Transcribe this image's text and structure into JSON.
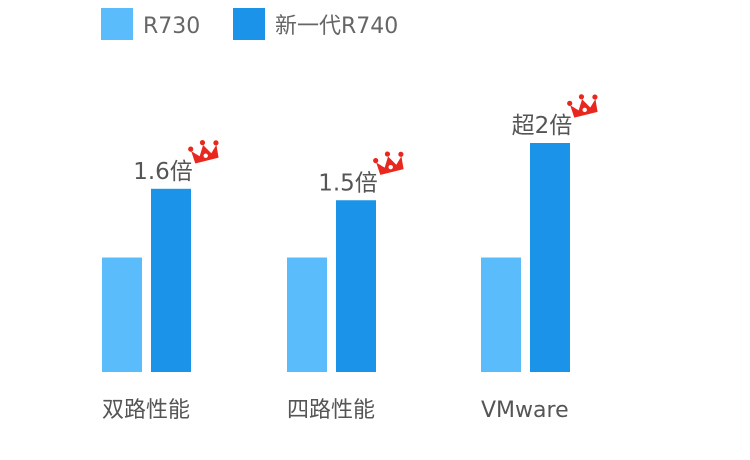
{
  "chart_data": {
    "type": "bar",
    "categories": [
      "双路性能",
      "四路性能",
      "VMware"
    ],
    "series": [
      {
        "name": "R730",
        "values": [
          1,
          1,
          1
        ],
        "color": "#5bbcfc"
      },
      {
        "name": "新一代R740",
        "values": [
          1.6,
          1.5,
          2
        ],
        "color": "#1a93e8"
      }
    ],
    "annotations": [
      "1.6倍",
      "1.5倍",
      "超2倍"
    ],
    "annotation_icon": "crown-icon",
    "annotation_icon_color": "#e8281e",
    "ylim": [
      0,
      2
    ],
    "legend_position": "top-left",
    "grid": false
  }
}
